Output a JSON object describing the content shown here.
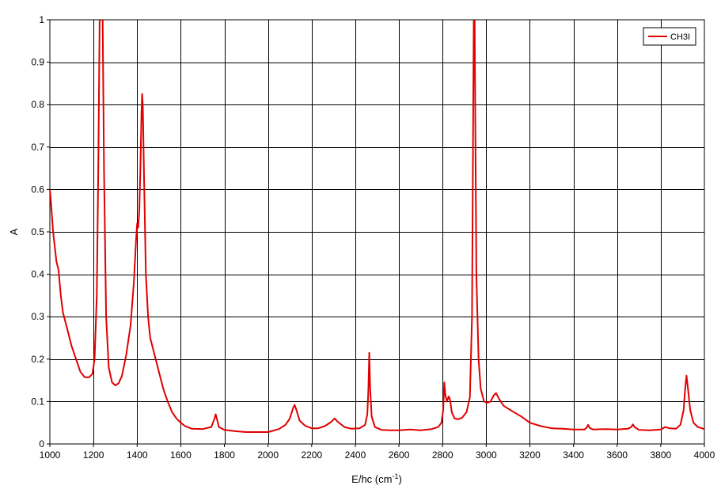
{
  "chart_data": {
    "type": "line",
    "title": "",
    "xlabel": "E/hc (cm",
    "xlabel_sup": "-1",
    "xlabel_suffix": ")",
    "ylabel": "A",
    "xlim": [
      1000,
      4000
    ],
    "ylim": [
      0,
      1
    ],
    "x_ticks": [
      1000,
      1200,
      1400,
      1600,
      1800,
      2000,
      2200,
      2400,
      2600,
      2800,
      3000,
      3200,
      3400,
      3600,
      3800,
      4000
    ],
    "y_ticks": [
      0,
      0.1,
      0.2,
      0.3,
      0.4,
      0.5,
      0.6,
      0.7,
      0.8,
      0.9,
      1
    ],
    "grid": true,
    "legend_position": "top-right",
    "series": [
      {
        "name": "CH3I",
        "color": "#e00000",
        "points": [
          [
            1000,
            0.6
          ],
          [
            1005,
            0.57
          ],
          [
            1015,
            0.5
          ],
          [
            1030,
            0.43
          ],
          [
            1040,
            0.41
          ],
          [
            1050,
            0.35
          ],
          [
            1060,
            0.31
          ],
          [
            1080,
            0.27
          ],
          [
            1100,
            0.23
          ],
          [
            1120,
            0.2
          ],
          [
            1140,
            0.17
          ],
          [
            1160,
            0.157
          ],
          [
            1180,
            0.157
          ],
          [
            1195,
            0.165
          ],
          [
            1205,
            0.2
          ],
          [
            1215,
            0.35
          ],
          [
            1222,
            0.65
          ],
          [
            1228,
            1.0
          ],
          [
            1242,
            1.0
          ],
          [
            1248,
            0.65
          ],
          [
            1258,
            0.3
          ],
          [
            1270,
            0.18
          ],
          [
            1285,
            0.145
          ],
          [
            1300,
            0.138
          ],
          [
            1315,
            0.143
          ],
          [
            1330,
            0.16
          ],
          [
            1350,
            0.21
          ],
          [
            1370,
            0.28
          ],
          [
            1385,
            0.38
          ],
          [
            1395,
            0.48
          ],
          [
            1400,
            0.52
          ],
          [
            1405,
            0.51
          ],
          [
            1410,
            0.55
          ],
          [
            1415,
            0.65
          ],
          [
            1420,
            0.78
          ],
          [
            1423,
            0.825
          ],
          [
            1426,
            0.8
          ],
          [
            1432,
            0.62
          ],
          [
            1440,
            0.4
          ],
          [
            1450,
            0.3
          ],
          [
            1460,
            0.25
          ],
          [
            1480,
            0.21
          ],
          [
            1500,
            0.17
          ],
          [
            1520,
            0.13
          ],
          [
            1540,
            0.1
          ],
          [
            1560,
            0.075
          ],
          [
            1580,
            0.06
          ],
          [
            1600,
            0.05
          ],
          [
            1620,
            0.042
          ],
          [
            1650,
            0.036
          ],
          [
            1700,
            0.035
          ],
          [
            1740,
            0.04
          ],
          [
            1755,
            0.06
          ],
          [
            1760,
            0.07
          ],
          [
            1765,
            0.06
          ],
          [
            1775,
            0.04
          ],
          [
            1800,
            0.033
          ],
          [
            1850,
            0.03
          ],
          [
            1900,
            0.028
          ],
          [
            1950,
            0.028
          ],
          [
            2000,
            0.028
          ],
          [
            2050,
            0.035
          ],
          [
            2080,
            0.045
          ],
          [
            2100,
            0.06
          ],
          [
            2115,
            0.085
          ],
          [
            2122,
            0.092
          ],
          [
            2130,
            0.08
          ],
          [
            2145,
            0.055
          ],
          [
            2170,
            0.043
          ],
          [
            2200,
            0.037
          ],
          [
            2230,
            0.037
          ],
          [
            2260,
            0.042
          ],
          [
            2290,
            0.052
          ],
          [
            2305,
            0.06
          ],
          [
            2320,
            0.052
          ],
          [
            2350,
            0.04
          ],
          [
            2380,
            0.036
          ],
          [
            2420,
            0.037
          ],
          [
            2445,
            0.045
          ],
          [
            2455,
            0.07
          ],
          [
            2460,
            0.13
          ],
          [
            2464,
            0.215
          ],
          [
            2468,
            0.13
          ],
          [
            2475,
            0.065
          ],
          [
            2490,
            0.04
          ],
          [
            2520,
            0.033
          ],
          [
            2560,
            0.032
          ],
          [
            2600,
            0.032
          ],
          [
            2650,
            0.034
          ],
          [
            2700,
            0.032
          ],
          [
            2750,
            0.035
          ],
          [
            2780,
            0.04
          ],
          [
            2795,
            0.05
          ],
          [
            2803,
            0.08
          ],
          [
            2808,
            0.145
          ],
          [
            2813,
            0.115
          ],
          [
            2820,
            0.1
          ],
          [
            2828,
            0.112
          ],
          [
            2834,
            0.105
          ],
          [
            2842,
            0.075
          ],
          [
            2855,
            0.06
          ],
          [
            2870,
            0.058
          ],
          [
            2890,
            0.062
          ],
          [
            2910,
            0.075
          ],
          [
            2925,
            0.11
          ],
          [
            2935,
            0.3
          ],
          [
            2940,
            0.75
          ],
          [
            2943,
            1.0
          ],
          [
            2947,
            1.0
          ],
          [
            2950,
            0.75
          ],
          [
            2955,
            0.4
          ],
          [
            2965,
            0.2
          ],
          [
            2975,
            0.13
          ],
          [
            2990,
            0.1
          ],
          [
            3005,
            0.097
          ],
          [
            3020,
            0.1
          ],
          [
            3035,
            0.115
          ],
          [
            3045,
            0.12
          ],
          [
            3060,
            0.105
          ],
          [
            3080,
            0.09
          ],
          [
            3120,
            0.077
          ],
          [
            3160,
            0.065
          ],
          [
            3200,
            0.05
          ],
          [
            3250,
            0.042
          ],
          [
            3300,
            0.037
          ],
          [
            3350,
            0.036
          ],
          [
            3400,
            0.034
          ],
          [
            3450,
            0.034
          ],
          [
            3460,
            0.038
          ],
          [
            3467,
            0.045
          ],
          [
            3474,
            0.038
          ],
          [
            3490,
            0.034
          ],
          [
            3550,
            0.035
          ],
          [
            3600,
            0.034
          ],
          [
            3650,
            0.036
          ],
          [
            3665,
            0.04
          ],
          [
            3672,
            0.046
          ],
          [
            3680,
            0.04
          ],
          [
            3700,
            0.033
          ],
          [
            3750,
            0.032
          ],
          [
            3800,
            0.034
          ],
          [
            3820,
            0.04
          ],
          [
            3840,
            0.037
          ],
          [
            3870,
            0.036
          ],
          [
            3890,
            0.045
          ],
          [
            3905,
            0.08
          ],
          [
            3912,
            0.13
          ],
          [
            3918,
            0.161
          ],
          [
            3925,
            0.13
          ],
          [
            3935,
            0.08
          ],
          [
            3950,
            0.05
          ],
          [
            3970,
            0.04
          ],
          [
            4000,
            0.035
          ]
        ]
      }
    ]
  }
}
